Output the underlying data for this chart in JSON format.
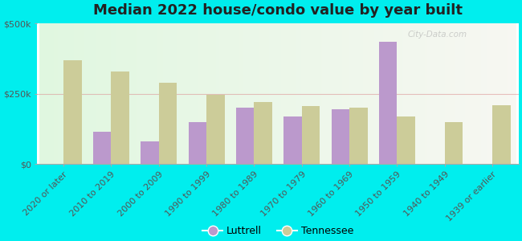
{
  "title": "Median 2022 house/condo value by year built",
  "categories": [
    "2020 or later",
    "2010 to 2019",
    "2000 to 2009",
    "1990 to 1999",
    "1980 to 1989",
    "1970 to 1979",
    "1960 to 1969",
    "1950 to 1959",
    "1940 to 1949",
    "1939 or earlier"
  ],
  "luttrell": [
    null,
    115000,
    80000,
    150000,
    200000,
    170000,
    195000,
    435000,
    null,
    null
  ],
  "tennessee": [
    370000,
    330000,
    290000,
    245000,
    220000,
    205000,
    200000,
    168000,
    148000,
    210000
  ],
  "luttrell_color": "#bb99cc",
  "tennessee_color": "#cccc99",
  "bar_width": 0.38,
  "ylim": [
    0,
    500000
  ],
  "ytick_labels": [
    "$0",
    "$250k",
    "$500k"
  ],
  "ytick_vals": [
    0,
    250000,
    500000
  ],
  "background_color": "#00eeee",
  "legend_luttrell": "Luttrell",
  "legend_tennessee": "Tennessee",
  "title_fontsize": 13,
  "tick_fontsize": 8,
  "watermark": "City-Data.com"
}
